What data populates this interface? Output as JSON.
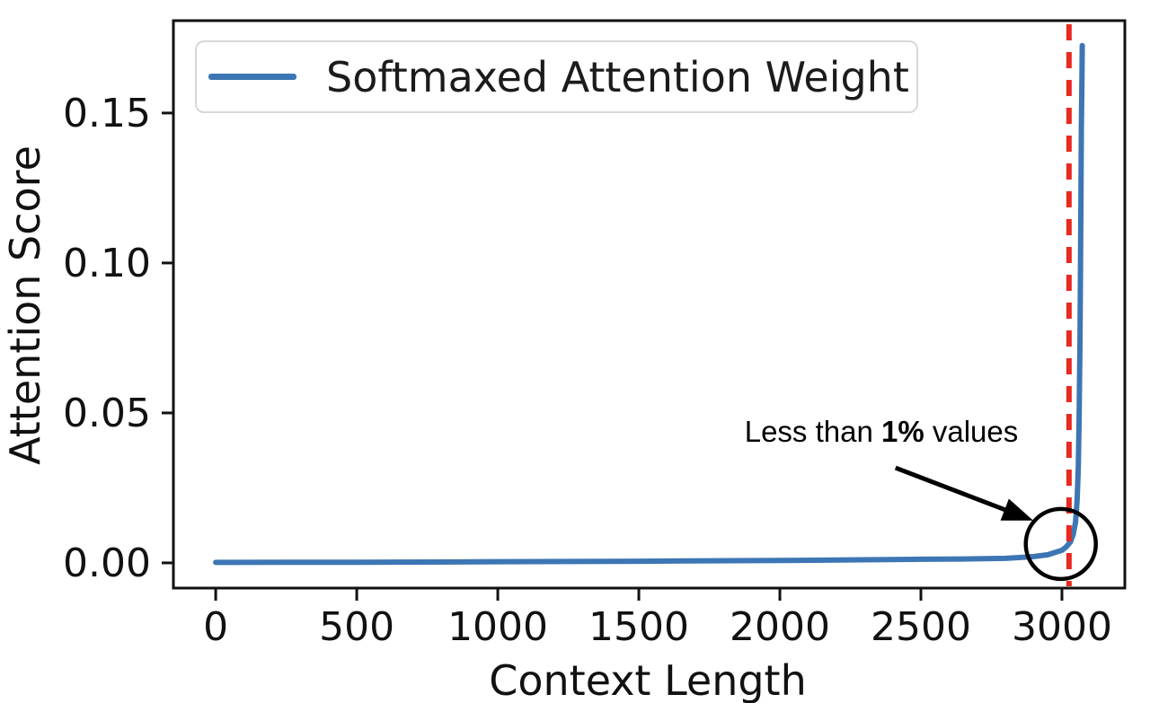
{
  "chart_data": {
    "type": "line",
    "title": "",
    "xlabel": "Context Length",
    "ylabel": "Attention Score",
    "xlim": [
      -150,
      3223
    ],
    "ylim": [
      -0.0084,
      0.1808
    ],
    "grid": false,
    "x_ticks": [
      0,
      500,
      1000,
      1500,
      2000,
      2500,
      3000
    ],
    "y_ticks": [
      0.0,
      0.05,
      0.1,
      0.15
    ],
    "y_tick_labels": [
      "0.00",
      "0.05",
      "0.10",
      "0.15"
    ],
    "legend": {
      "position": "upper left",
      "entries": [
        {
          "label": "Softmaxed Attention Weight",
          "color": "#3d76b4"
        }
      ]
    },
    "series": [
      {
        "name": "Softmaxed Attention Weight",
        "color": "#3d76b4",
        "points": [
          [
            0,
            0.00015
          ],
          [
            250,
            0.0002
          ],
          [
            500,
            0.00022
          ],
          [
            750,
            0.00028
          ],
          [
            1000,
            0.0004
          ],
          [
            1250,
            0.00045
          ],
          [
            1500,
            0.00055
          ],
          [
            1750,
            0.0007
          ],
          [
            2000,
            0.0008
          ],
          [
            2250,
            0.001
          ],
          [
            2500,
            0.0012
          ],
          [
            2650,
            0.0013
          ],
          [
            2800,
            0.0015
          ],
          [
            2900,
            0.0021
          ],
          [
            2950,
            0.0027
          ],
          [
            3000,
            0.0042
          ],
          [
            3015,
            0.0053
          ],
          [
            3030,
            0.007
          ],
          [
            3040,
            0.0095
          ],
          [
            3048,
            0.0135
          ],
          [
            3054,
            0.021
          ],
          [
            3058,
            0.032
          ],
          [
            3061,
            0.048
          ],
          [
            3064,
            0.075
          ],
          [
            3067,
            0.115
          ],
          [
            3069,
            0.145
          ],
          [
            3071,
            0.163
          ],
          [
            3072,
            0.1725
          ]
        ]
      }
    ],
    "vline": {
      "x": 3025,
      "color": "#e8291f",
      "style": "dashed"
    },
    "annotation": {
      "text_prefix": "Less than ",
      "text_bold": "1%",
      "text_suffix": " values",
      "color": "#000000",
      "arrow_from": [
        2410,
        0.0317
      ],
      "arrow_to": [
        2898,
        0.0141
      ],
      "circle_center": [
        2996,
        0.0063
      ],
      "circle_radius_px": 39
    },
    "peak_value": 0.1725,
    "peak_x": 3072
  },
  "colors": {
    "background": "#ffffff",
    "axis": "#111111",
    "curve": "#3d76b4",
    "vline": "#e8291f",
    "legend_border": "#d8d8d8"
  }
}
